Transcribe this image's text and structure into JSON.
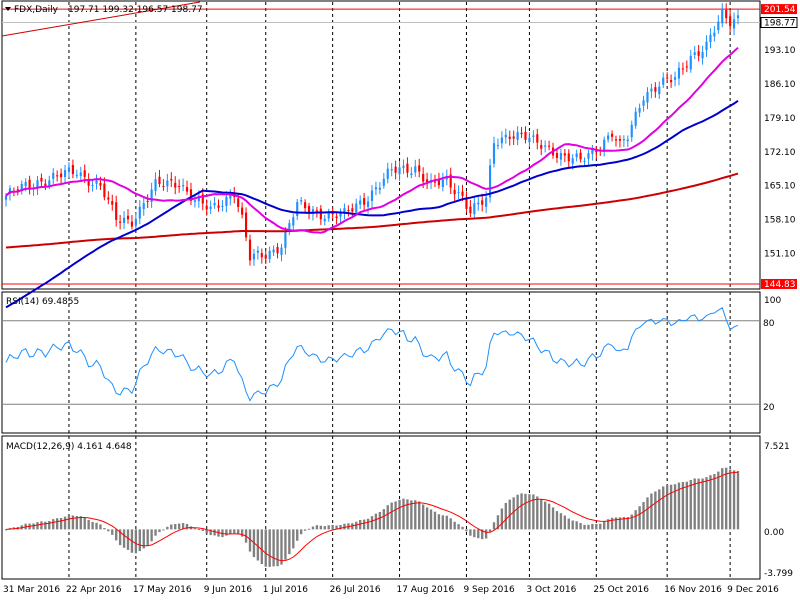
{
  "chart_data": {
    "type": "candlestick",
    "symbol_label": "FDX,Daily",
    "ohlc_label": "197.71 199.32 196.57 198.77",
    "colors": {
      "up": "#1e90ff",
      "down": "#ff0000",
      "ma_fast": "#e000e0",
      "ma_mid": "#0000cc",
      "ma_slow": "#cc0000",
      "rsi": "#1e90ff",
      "macd_hist": "#808080",
      "macd_signal": "#ff0000",
      "grid": "#000000"
    },
    "ylim": [
      144.0,
      203.0
    ],
    "y_ticks": [
      "193.10",
      "186.10",
      "179.10",
      "172.10",
      "165.10",
      "158.10",
      "151.10"
    ],
    "y_tick_values": [
      193.1,
      186.1,
      179.1,
      172.1,
      165.1,
      158.1,
      151.1
    ],
    "price_tags": [
      {
        "label": "201.54",
        "value": 201.54,
        "color": "#ff0000"
      },
      {
        "label": "198.77",
        "value": 198.77,
        "color": "#ffffff"
      },
      {
        "label": "144.83",
        "value": 144.83,
        "color": "#ff0000"
      }
    ],
    "x_labels": [
      "31 Mar 2016",
      "22 Apr 2016",
      "17 May 2016",
      "9 Jun 2016",
      "1 Jul 2016",
      "26 Jul 2016",
      "17 Aug 2016",
      "9 Sep 2016",
      "3 Oct 2016",
      "25 Oct 2016",
      "16 Nov 2016",
      "9 Dec 2016"
    ],
    "keypoints": [
      [
        0,
        163
      ],
      [
        8,
        166
      ],
      [
        18,
        168
      ],
      [
        24,
        165
      ],
      [
        28,
        158
      ],
      [
        32,
        158
      ],
      [
        38,
        165
      ],
      [
        44,
        166
      ],
      [
        48,
        162
      ],
      [
        52,
        160
      ],
      [
        58,
        164
      ],
      [
        60,
        158
      ],
      [
        62,
        150
      ],
      [
        66,
        151
      ],
      [
        70,
        153
      ],
      [
        74,
        161
      ],
      [
        78,
        160
      ],
      [
        82,
        159
      ],
      [
        86,
        159
      ],
      [
        92,
        163
      ],
      [
        98,
        168
      ],
      [
        104,
        169
      ],
      [
        108,
        165
      ],
      [
        112,
        166
      ],
      [
        116,
        163
      ],
      [
        118,
        160
      ],
      [
        122,
        162
      ],
      [
        124,
        174
      ],
      [
        128,
        176
      ],
      [
        132,
        175
      ],
      [
        134,
        174
      ],
      [
        138,
        173
      ],
      [
        142,
        171
      ],
      [
        146,
        170
      ],
      [
        150,
        173
      ],
      [
        154,
        176
      ],
      [
        156,
        173
      ],
      [
        158,
        175
      ],
      [
        162,
        184
      ],
      [
        166,
        186
      ],
      [
        170,
        187
      ],
      [
        174,
        192
      ],
      [
        178,
        194
      ],
      [
        182,
        200
      ],
      [
        184,
        199
      ],
      [
        186,
        200
      ]
    ],
    "rsi": {
      "label": "RSI(14) 69.4855",
      "value": 69.4855,
      "levels": [
        80,
        20
      ],
      "level_labels": [
        "80",
        "20"
      ],
      "scale_top_label": "100"
    },
    "macd": {
      "label": "MACD(12,26,9) 4.161 4.648",
      "value": 4.161,
      "signal": 4.648,
      "scale_labels": [
        "7.521",
        "0.00",
        "-3.799"
      ]
    }
  }
}
